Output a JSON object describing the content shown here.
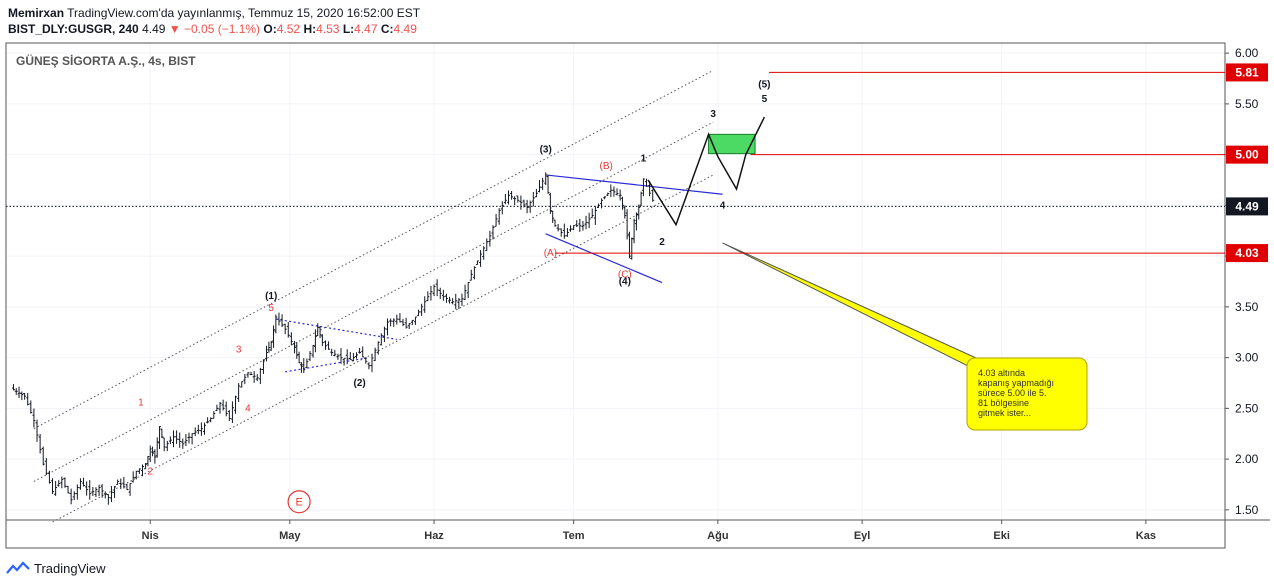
{
  "header": {
    "author": "Memirxan",
    "published_text": "TradingView.com'da yayınlanmış, Temmuz 15, 2020 16:52:00 EST",
    "symbol": "BIST_DLY:GUSGR, 240",
    "last": "4.49",
    "change": "−0.05 (−1.1%)",
    "o_label": "O:",
    "o": "4.52",
    "h_label": "H:",
    "h": "4.53",
    "l_label": "L:",
    "l": "4.47",
    "c_label": "C:",
    "c": "4.49"
  },
  "legend_title": "GÜNEŞ SİGORTA A.Ş., 4s, BIST",
  "footer": {
    "brand": "TradingView"
  },
  "colors": {
    "candle": "#131722",
    "red_line": "#e00000",
    "blue_line": "#2a2ad8",
    "green_box": "#4cd964",
    "callout_fill": "#ffff00",
    "callout_border": "#b5a000",
    "wave_red": "#e53935"
  },
  "chart_data": {
    "type": "candlestick",
    "title": "GÜNEŞ SİGORTA A.Ş., 4s, BIST",
    "ylim": [
      1.4,
      6.1
    ],
    "y_ticks": [
      "1.50",
      "2.00",
      "2.50",
      "3.00",
      "3.50",
      "4.00",
      "4.50",
      "5.00",
      "5.50",
      "6.00"
    ],
    "x_ticks": [
      "Nis",
      "May",
      "Haz",
      "Tem",
      "Ağu",
      "Eyl",
      "Eki",
      "Kas"
    ],
    "x_tick_days": [
      31,
      61,
      92,
      122,
      153,
      184,
      214,
      245
    ],
    "x_range_days": [
      0,
      262
    ],
    "x_units": "days from Mar 1, 2020",
    "price_path": [
      [
        1,
        2.7
      ],
      [
        4,
        2.62
      ],
      [
        6,
        2.38
      ],
      [
        8,
        1.95
      ],
      [
        10,
        1.68
      ],
      [
        12,
        1.8
      ],
      [
        14,
        1.6
      ],
      [
        16,
        1.78
      ],
      [
        18,
        1.66
      ],
      [
        20,
        1.72
      ],
      [
        22,
        1.62
      ],
      [
        24,
        1.78
      ],
      [
        26,
        1.7
      ],
      [
        28,
        1.88
      ],
      [
        30,
        1.95
      ],
      [
        31,
        2.1
      ],
      [
        32,
        2.02
      ],
      [
        33,
        2.32
      ],
      [
        34,
        2.12
      ],
      [
        36,
        2.22
      ],
      [
        38,
        2.15
      ],
      [
        40,
        2.25
      ],
      [
        42,
        2.3
      ],
      [
        44,
        2.4
      ],
      [
        46,
        2.55
      ],
      [
        48,
        2.4
      ],
      [
        50,
        2.72
      ],
      [
        52,
        2.85
      ],
      [
        54,
        2.8
      ],
      [
        56,
        3.05
      ],
      [
        57,
        3.15
      ],
      [
        58,
        3.4
      ],
      [
        60,
        3.28
      ],
      [
        62,
        3.1
      ],
      [
        63,
        2.95
      ],
      [
        64,
        2.88
      ],
      [
        66,
        3.12
      ],
      [
        67,
        3.3
      ],
      [
        68,
        3.15
      ],
      [
        70,
        3.05
      ],
      [
        72,
        3.0
      ],
      [
        74,
        2.98
      ],
      [
        76,
        3.05
      ],
      [
        78,
        2.92
      ],
      [
        80,
        3.15
      ],
      [
        82,
        3.35
      ],
      [
        84,
        3.38
      ],
      [
        86,
        3.3
      ],
      [
        88,
        3.4
      ],
      [
        90,
        3.55
      ],
      [
        92,
        3.7
      ],
      [
        94,
        3.6
      ],
      [
        96,
        3.55
      ],
      [
        98,
        3.58
      ],
      [
        100,
        3.82
      ],
      [
        102,
        4.02
      ],
      [
        104,
        4.2
      ],
      [
        106,
        4.45
      ],
      [
        108,
        4.6
      ],
      [
        110,
        4.55
      ],
      [
        112,
        4.48
      ],
      [
        114,
        4.62
      ],
      [
        116,
        4.8
      ],
      [
        117,
        4.45
      ],
      [
        118,
        4.3
      ],
      [
        120,
        4.2
      ],
      [
        122,
        4.3
      ],
      [
        124,
        4.3
      ],
      [
        126,
        4.4
      ],
      [
        128,
        4.55
      ],
      [
        130,
        4.65
      ],
      [
        132,
        4.6
      ],
      [
        133,
        4.4
      ],
      [
        134,
        4.0
      ],
      [
        135,
        4.35
      ],
      [
        136,
        4.48
      ],
      [
        137,
        4.76
      ],
      [
        139,
        4.55
      ]
    ],
    "horizontal_levels": [
      {
        "value": 5.81,
        "label": "5.81"
      },
      {
        "value": 5.0,
        "label": "5.00"
      },
      {
        "value": 4.03,
        "label": "4.03"
      }
    ],
    "last_price": {
      "value": 4.49,
      "label": "4.49"
    },
    "channel": {
      "upper": [
        [
          6,
          2.3
        ],
        [
          152,
          5.83
        ]
      ],
      "middle": [
        [
          6,
          1.78
        ],
        [
          152,
          5.32
        ]
      ],
      "lower": [
        [
          10,
          1.38
        ],
        [
          152,
          4.8
        ]
      ]
    },
    "triangle_upper": [
      [
        58,
        3.38
      ],
      [
        84,
        3.18
      ]
    ],
    "triangle_lower": [
      [
        60,
        2.86
      ],
      [
        78,
        3.0
      ]
    ],
    "blue_upper": [
      [
        116,
        4.8
      ],
      [
        154,
        4.61
      ]
    ],
    "blue_lower": [
      [
        116,
        4.22
      ],
      [
        141,
        3.74
      ]
    ],
    "projection_path": [
      [
        138,
        4.75
      ],
      [
        144,
        4.31
      ],
      [
        151,
        5.2
      ],
      [
        153,
        4.98
      ],
      [
        157,
        4.66
      ],
      [
        159,
        5.0
      ],
      [
        163,
        5.37
      ]
    ],
    "target_box": {
      "x0": 151,
      "x1": 161,
      "y0": 5.01,
      "y1": 5.2
    },
    "wave_labels": [
      {
        "text": "1",
        "x": 29,
        "y": 2.53,
        "color": "red"
      },
      {
        "text": "2",
        "x": 31,
        "y": 1.85,
        "color": "red"
      },
      {
        "text": "3",
        "x": 50,
        "y": 3.05,
        "color": "red"
      },
      {
        "text": "4",
        "x": 52,
        "y": 2.47,
        "color": "red"
      },
      {
        "text": "5",
        "x": 57,
        "y": 3.46,
        "color": "red"
      },
      {
        "text": "(1)",
        "x": 57,
        "y": 3.58,
        "color": "black"
      },
      {
        "text": "(2)",
        "x": 76,
        "y": 2.72,
        "color": "black"
      },
      {
        "text": "(3)",
        "x": 116,
        "y": 5.02,
        "color": "black"
      },
      {
        "text": "(A)",
        "x": 117,
        "y": 4.0,
        "color": "red"
      },
      {
        "text": "(B)",
        "x": 129,
        "y": 4.86,
        "color": "red"
      },
      {
        "text": "1",
        "x": 137,
        "y": 4.93,
        "color": "black"
      },
      {
        "text": "(C)",
        "x": 133,
        "y": 3.79,
        "color": "red"
      },
      {
        "text": "(4)",
        "x": 133,
        "y": 3.72,
        "color": "black"
      },
      {
        "text": "2",
        "x": 141,
        "y": 4.11,
        "color": "black"
      },
      {
        "text": "3",
        "x": 152,
        "y": 5.37,
        "color": "black"
      },
      {
        "text": "4",
        "x": 154,
        "y": 4.47,
        "color": "black"
      },
      {
        "text": "(5)",
        "x": 163,
        "y": 5.66,
        "color": "black"
      },
      {
        "text": "5",
        "x": 163,
        "y": 5.52,
        "color": "black"
      }
    ],
    "callout": {
      "text_lines": [
        "4.03 altında",
        "kapanış yapmadığı",
        "sürece 5.00 ile 5.",
        "81 bölgesine",
        "gitmek ister..."
      ],
      "anchor": [
        154,
        4.13
      ]
    },
    "event_marker": {
      "text": "E",
      "x": 63,
      "y": 1.58
    }
  }
}
